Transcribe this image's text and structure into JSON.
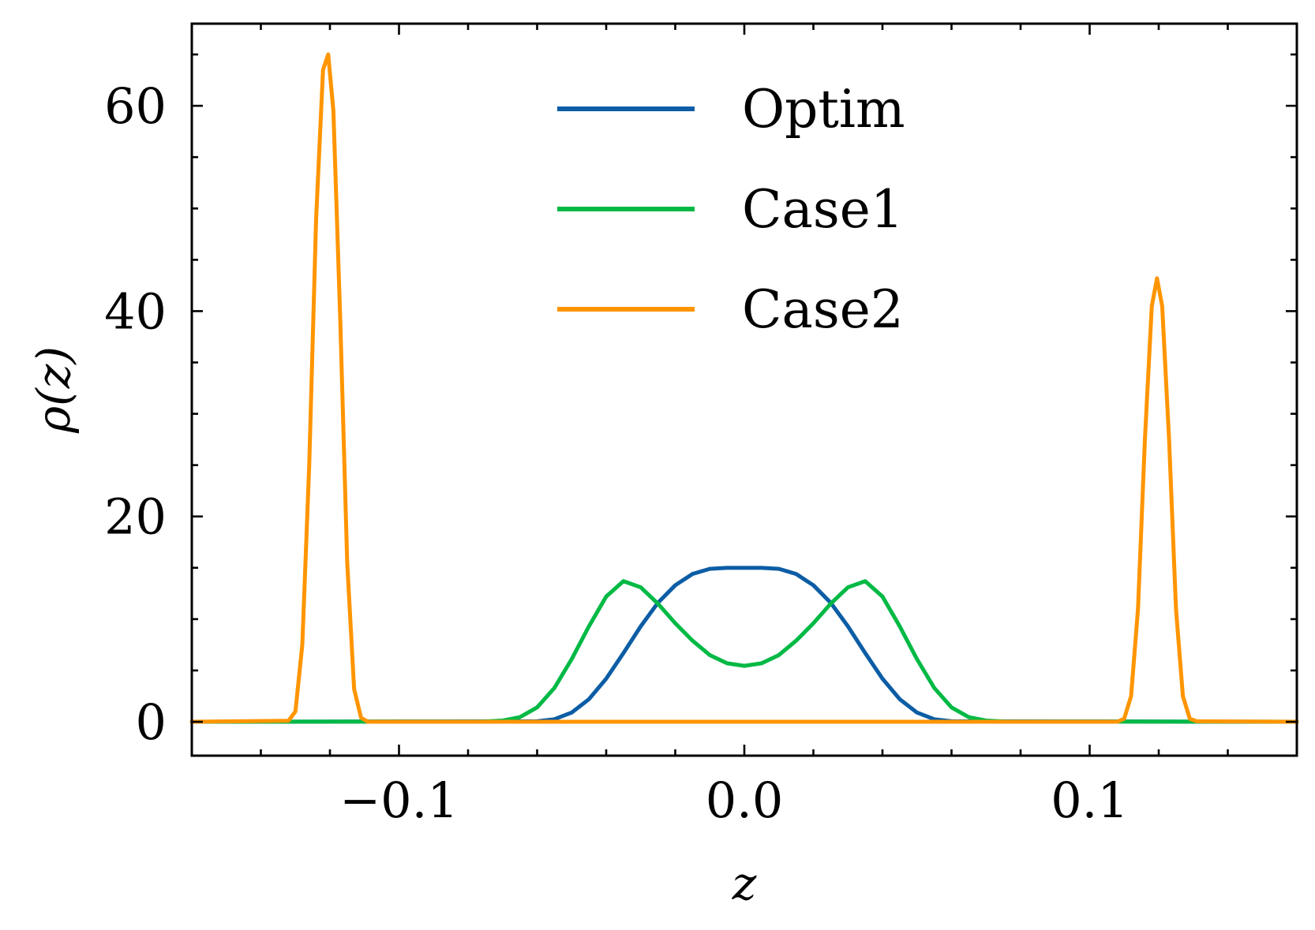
{
  "chart_data": {
    "type": "line",
    "title": "",
    "xlabel": "z",
    "ylabel": "ρ(z)",
    "xlim": [
      -0.16,
      0.16
    ],
    "ylim": [
      -3.3,
      68
    ],
    "x_ticks": [
      -0.1,
      0.0,
      0.1
    ],
    "x_tick_labels": [
      "−0.1",
      "0.0",
      "0.1"
    ],
    "x_minor_step": 0.02,
    "y_ticks": [
      0,
      20,
      40,
      60
    ],
    "y_tick_labels": [
      "0",
      "20",
      "40",
      "60"
    ],
    "y_minor_step": 5,
    "grid": false,
    "legend_position": "top-center",
    "series": [
      {
        "name": "Optim",
        "color": "#0c5da5",
        "x": [
          -0.16,
          -0.06,
          -0.055,
          -0.05,
          -0.045,
          -0.04,
          -0.035,
          -0.03,
          -0.025,
          -0.02,
          -0.015,
          -0.01,
          -0.005,
          0.0,
          0.005,
          0.01,
          0.015,
          0.02,
          0.025,
          0.03,
          0.035,
          0.04,
          0.045,
          0.05,
          0.055,
          0.06,
          0.16
        ],
        "y": [
          0.0,
          0.05,
          0.25,
          0.9,
          2.2,
          4.2,
          6.7,
          9.3,
          11.6,
          13.3,
          14.4,
          14.9,
          15.0,
          15.0,
          15.0,
          14.9,
          14.4,
          13.3,
          11.6,
          9.3,
          6.7,
          4.2,
          2.2,
          0.9,
          0.25,
          0.05,
          0.0
        ]
      },
      {
        "name": "Case1",
        "color": "#00b945",
        "x": [
          -0.16,
          -0.075,
          -0.07,
          -0.065,
          -0.06,
          -0.055,
          -0.05,
          -0.045,
          -0.04,
          -0.035,
          -0.03,
          -0.025,
          -0.02,
          -0.015,
          -0.01,
          -0.005,
          0.0,
          0.005,
          0.01,
          0.015,
          0.02,
          0.025,
          0.03,
          0.035,
          0.04,
          0.045,
          0.05,
          0.055,
          0.06,
          0.065,
          0.07,
          0.075,
          0.16
        ],
        "y": [
          0.0,
          0.03,
          0.12,
          0.45,
          1.4,
          3.3,
          6.1,
          9.3,
          12.2,
          13.7,
          13.1,
          11.5,
          9.6,
          7.9,
          6.5,
          5.7,
          5.45,
          5.7,
          6.5,
          7.9,
          9.6,
          11.5,
          13.1,
          13.7,
          12.2,
          9.3,
          6.1,
          3.3,
          1.4,
          0.45,
          0.12,
          0.03,
          0.0
        ]
      },
      {
        "name": "Case2",
        "color": "#ff9500",
        "x": [
          -0.16,
          -0.132,
          -0.13,
          -0.128,
          -0.126,
          -0.124,
          -0.122,
          -0.1205,
          -0.119,
          -0.117,
          -0.115,
          -0.113,
          -0.111,
          -0.109,
          0.108,
          0.11,
          0.112,
          0.114,
          0.116,
          0.118,
          0.1195,
          0.121,
          0.123,
          0.125,
          0.127,
          0.129,
          0.131,
          0.16
        ],
        "y": [
          0.0,
          0.1,
          1.0,
          7.5,
          25.0,
          49.0,
          63.5,
          65.0,
          59.5,
          39.0,
          15.5,
          3.2,
          0.4,
          0.0,
          0.0,
          0.3,
          2.5,
          11.0,
          27.5,
          40.5,
          43.2,
          40.5,
          27.5,
          11.0,
          2.5,
          0.3,
          0.05,
          0.0
        ]
      }
    ]
  }
}
